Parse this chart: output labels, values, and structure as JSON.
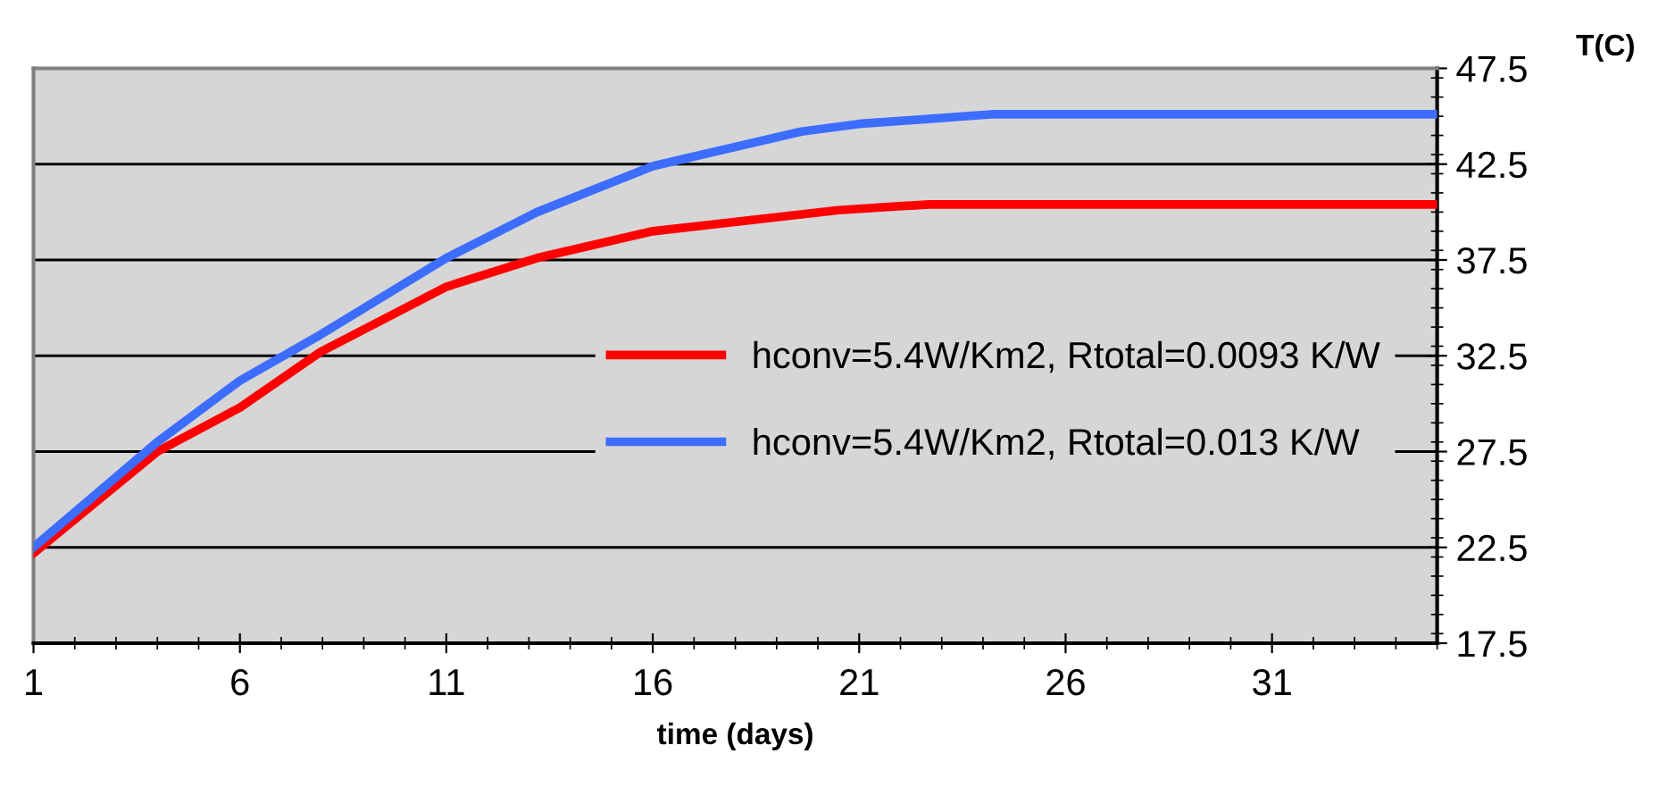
{
  "chart_data": {
    "type": "line",
    "xlabel": "time (days)",
    "ylabel": "T(C)",
    "xlim": [
      1,
      35
    ],
    "xticks": [
      1,
      6,
      11,
      16,
      21,
      26,
      31
    ],
    "ylim": [
      17.5,
      47.5
    ],
    "yticks": [
      17.5,
      22.5,
      27.5,
      32.5,
      37.5,
      42.5,
      47.5
    ],
    "grid": "y",
    "legend": "right",
    "marker": "none",
    "line_style": "solid",
    "series": [
      {
        "name": "hconv=5.4W/Km2, Rtotal=0.0093 K/W",
        "color": "#ff0000",
        "x": [
          1,
          4,
          6,
          7.95,
          11,
          13.2,
          16,
          20.5,
          22.7,
          35
        ],
        "values": [
          22.2,
          27.5,
          29.8,
          32.7,
          36.1,
          37.6,
          39.0,
          40.1,
          40.4,
          40.4
        ]
      },
      {
        "name": "hconv=5.4W/Km2, Rtotal=0.013 K/W",
        "color": "#3d6dff",
        "x": [
          1,
          4,
          6,
          7.95,
          11,
          13.2,
          16,
          19.6,
          21,
          24.2,
          35
        ],
        "values": [
          22.5,
          28.0,
          31.2,
          33.6,
          37.6,
          40.0,
          42.4,
          44.2,
          44.6,
          45.1,
          45.1
        ]
      }
    ]
  }
}
